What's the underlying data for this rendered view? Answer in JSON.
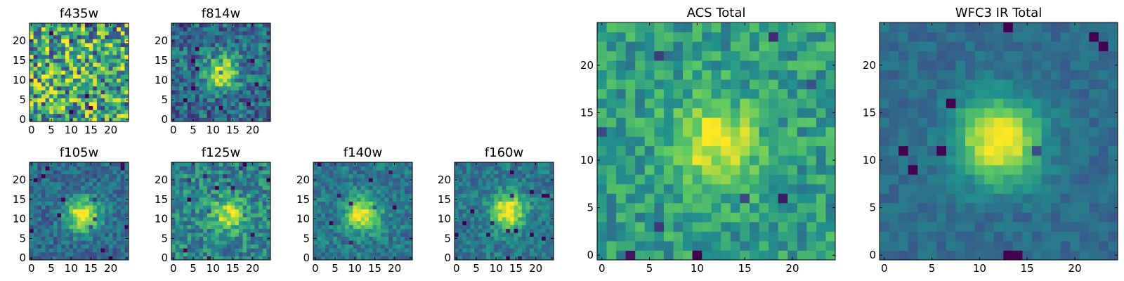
{
  "chart_data": [
    {
      "type": "heatmap",
      "title": "f435w",
      "x_range": [
        0,
        24
      ],
      "y_range": [
        0,
        24
      ],
      "x_ticks": [
        "0",
        "5",
        "10",
        "15",
        "20"
      ],
      "y_ticks": [
        "0",
        "5",
        "10",
        "15",
        "20"
      ],
      "peak": [
        12,
        12
      ],
      "peak_strength": 0.02,
      "noise": 0.85,
      "base": 0.6,
      "seed": 11
    },
    {
      "type": "heatmap",
      "title": "f814w",
      "x_range": [
        0,
        24
      ],
      "y_range": [
        0,
        24
      ],
      "x_ticks": [
        "0",
        "5",
        "10",
        "15",
        "20"
      ],
      "y_ticks": [
        "0",
        "5",
        "10",
        "15",
        "20"
      ],
      "peak": [
        12,
        12
      ],
      "peak_strength": 0.6,
      "noise": 0.45,
      "base": 0.35,
      "seed": 23
    },
    {
      "type": "heatmap",
      "title": "f105w",
      "x_range": [
        0,
        24
      ],
      "y_range": [
        0,
        24
      ],
      "x_ticks": [
        "0",
        "5",
        "10",
        "15",
        "20"
      ],
      "y_ticks": [
        "0",
        "5",
        "10",
        "15",
        "20"
      ],
      "peak": [
        13,
        11
      ],
      "peak_strength": 0.65,
      "noise": 0.3,
      "base": 0.35,
      "seed": 37
    },
    {
      "type": "heatmap",
      "title": "f125w",
      "x_range": [
        0,
        24
      ],
      "y_range": [
        0,
        24
      ],
      "x_ticks": [
        "0",
        "5",
        "10",
        "15",
        "20"
      ],
      "y_ticks": [
        "0",
        "5",
        "10",
        "15",
        "20"
      ],
      "peak": [
        14,
        11
      ],
      "peak_strength": 0.45,
      "noise": 0.4,
      "base": 0.45,
      "seed": 41
    },
    {
      "type": "heatmap",
      "title": "f140w",
      "x_range": [
        0,
        24
      ],
      "y_range": [
        0,
        24
      ],
      "x_ticks": [
        "0",
        "5",
        "10",
        "15",
        "20"
      ],
      "y_ticks": [
        "0",
        "5",
        "10",
        "15",
        "20"
      ],
      "peak": [
        12,
        11
      ],
      "peak_strength": 0.6,
      "noise": 0.3,
      "base": 0.4,
      "seed": 53
    },
    {
      "type": "heatmap",
      "title": "f160w",
      "x_range": [
        0,
        24
      ],
      "y_range": [
        0,
        24
      ],
      "x_ticks": [
        "0",
        "5",
        "10",
        "15",
        "20"
      ],
      "y_ticks": [
        "0",
        "5",
        "10",
        "15",
        "20"
      ],
      "peak": [
        13,
        12
      ],
      "peak_strength": 0.65,
      "noise": 0.28,
      "base": 0.4,
      "seed": 67
    },
    {
      "type": "heatmap",
      "title": "ACS Total",
      "x_range": [
        0,
        24
      ],
      "y_range": [
        0,
        24
      ],
      "x_ticks": [
        "0",
        "5",
        "10",
        "15",
        "20"
      ],
      "y_ticks": [
        "0",
        "5",
        "10",
        "15",
        "20"
      ],
      "peak": [
        12,
        12
      ],
      "peak_strength": 0.45,
      "noise": 0.35,
      "base": 0.55,
      "seed": 79
    },
    {
      "type": "heatmap",
      "title": "WFC3 IR Total",
      "x_range": [
        0,
        24
      ],
      "y_range": [
        0,
        24
      ],
      "x_ticks": [
        "0",
        "5",
        "10",
        "15",
        "20"
      ],
      "y_ticks": [
        "0",
        "5",
        "10",
        "15",
        "20"
      ],
      "peak": [
        12,
        12
      ],
      "peak_strength": 0.7,
      "noise": 0.15,
      "base": 0.35,
      "seed": 97
    }
  ],
  "colormap": [
    "#440154",
    "#3b528b",
    "#21918c",
    "#5ec962",
    "#fde725"
  ]
}
